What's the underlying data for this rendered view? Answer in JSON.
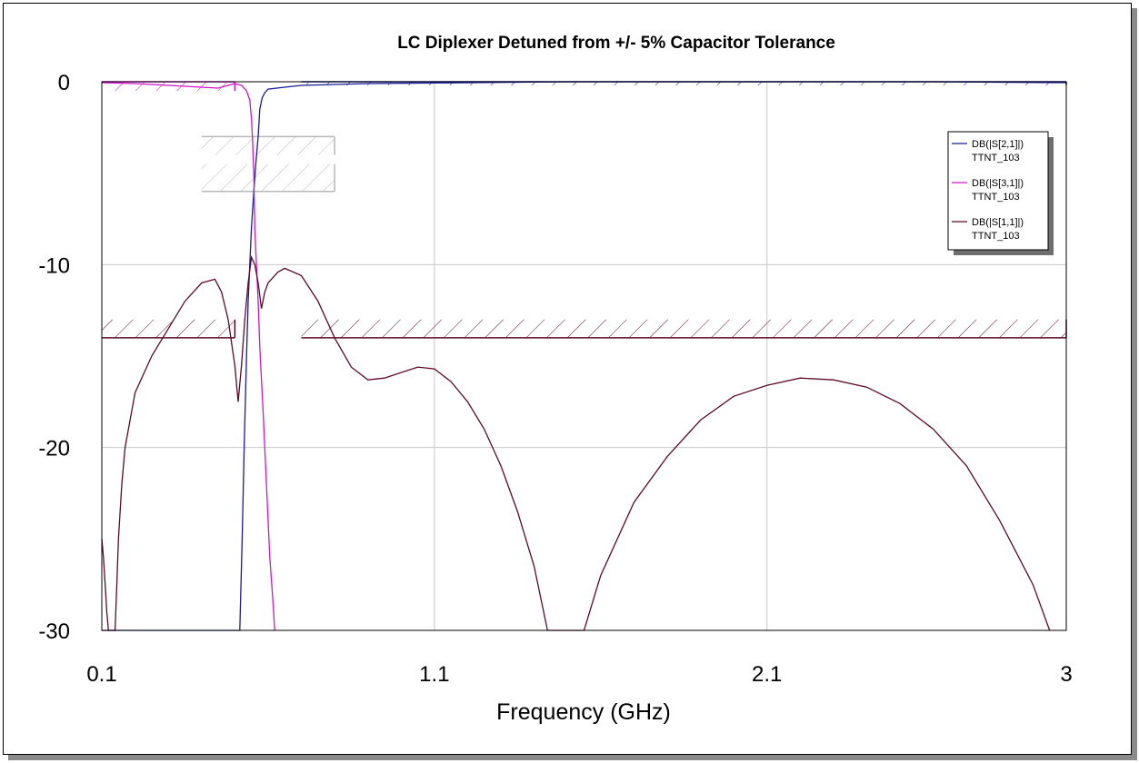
{
  "chart_data": {
    "type": "line",
    "title": "LC Diplexer Detuned from +/- 5% Capacitor Tolerance",
    "xlabel": "Frequency (GHz)",
    "ylabel": "",
    "xlim": [
      0.1,
      3
    ],
    "ylim": [
      -30,
      0
    ],
    "xticks": [
      0.1,
      1.1,
      2.1,
      3
    ],
    "xtick_labels": [
      "0.1",
      "1.1",
      "2.1",
      "3"
    ],
    "yticks": [
      0,
      -10,
      -20,
      -30
    ],
    "ytick_labels": [
      "0",
      "-10",
      "-20",
      "-30"
    ],
    "grid": true,
    "legend_position": "top-right",
    "series": [
      {
        "name": "DB(|S[2,1]|)",
        "sub": "TTNT_103",
        "color": "#1a1a9a",
        "points": [
          [
            0.1,
            -30
          ],
          [
            0.515,
            -30
          ],
          [
            0.522,
            -25
          ],
          [
            0.528,
            -20
          ],
          [
            0.535,
            -15
          ],
          [
            0.54,
            -12
          ],
          [
            0.545,
            -10
          ],
          [
            0.55,
            -8
          ],
          [
            0.557,
            -6
          ],
          [
            0.563,
            -4.5
          ],
          [
            0.57,
            -3
          ],
          [
            0.575,
            -1.5
          ],
          [
            0.582,
            -0.9
          ],
          [
            0.59,
            -0.6
          ],
          [
            0.6,
            -0.4
          ],
          [
            0.65,
            -0.3
          ],
          [
            0.7,
            -0.2
          ],
          [
            0.9,
            -0.1
          ],
          [
            1.5,
            0
          ],
          [
            2.6,
            0
          ],
          [
            3.0,
            -0.05
          ]
        ]
      },
      {
        "name": "DB(|S[3,1]|)",
        "sub": "TTNT_103",
        "color": "#d016c8",
        "points": [
          [
            0.1,
            -0.05
          ],
          [
            0.2,
            -0.1
          ],
          [
            0.3,
            -0.2
          ],
          [
            0.4,
            -0.3
          ],
          [
            0.45,
            -0.35
          ],
          [
            0.48,
            -0.2
          ],
          [
            0.5,
            -0.1
          ],
          [
            0.52,
            -0.2
          ],
          [
            0.535,
            -0.5
          ],
          [
            0.545,
            -1
          ],
          [
            0.55,
            -2
          ],
          [
            0.553,
            -3
          ],
          [
            0.557,
            -5
          ],
          [
            0.56,
            -8
          ],
          [
            0.565,
            -10
          ],
          [
            0.57,
            -12
          ],
          [
            0.575,
            -14.5
          ],
          [
            0.585,
            -18
          ],
          [
            0.595,
            -22
          ],
          [
            0.605,
            -26
          ],
          [
            0.615,
            -28.5
          ],
          [
            0.62,
            -30
          ]
        ]
      },
      {
        "name": "DB(|S[1,1]|)",
        "sub": "TTNT_103",
        "color": "#5c0a28",
        "points": [
          [
            0.1,
            -25
          ],
          [
            0.105,
            -26
          ],
          [
            0.11,
            -27.5
          ],
          [
            0.115,
            -29
          ],
          [
            0.12,
            -30
          ],
          [
            0.13,
            -30
          ],
          [
            0.14,
            -30
          ],
          [
            0.145,
            -27.5
          ],
          [
            0.15,
            -25
          ],
          [
            0.16,
            -22
          ],
          [
            0.17,
            -20
          ],
          [
            0.2,
            -17
          ],
          [
            0.25,
            -15
          ],
          [
            0.3,
            -13.5
          ],
          [
            0.35,
            -12
          ],
          [
            0.4,
            -11
          ],
          [
            0.44,
            -10.8
          ],
          [
            0.46,
            -11.5
          ],
          [
            0.48,
            -13
          ],
          [
            0.5,
            -15.5
          ],
          [
            0.51,
            -17.5
          ],
          [
            0.52,
            -15.5
          ],
          [
            0.53,
            -13
          ],
          [
            0.54,
            -11
          ],
          [
            0.55,
            -9.6
          ],
          [
            0.56,
            -10
          ],
          [
            0.57,
            -11
          ],
          [
            0.58,
            -12.4
          ],
          [
            0.59,
            -11.5
          ],
          [
            0.6,
            -11
          ],
          [
            0.63,
            -10.4
          ],
          [
            0.65,
            -10.2
          ],
          [
            0.7,
            -10.6
          ],
          [
            0.75,
            -12
          ],
          [
            0.8,
            -14
          ],
          [
            0.85,
            -15.6
          ],
          [
            0.9,
            -16.3
          ],
          [
            0.95,
            -16.2
          ],
          [
            1.0,
            -15.9
          ],
          [
            1.05,
            -15.6
          ],
          [
            1.1,
            -15.7
          ],
          [
            1.15,
            -16.4
          ],
          [
            1.2,
            -17.5
          ],
          [
            1.25,
            -19
          ],
          [
            1.3,
            -21
          ],
          [
            1.35,
            -23.5
          ],
          [
            1.4,
            -26.5
          ],
          [
            1.44,
            -30
          ],
          [
            1.55,
            -30
          ],
          [
            1.6,
            -27
          ],
          [
            1.7,
            -23
          ],
          [
            1.8,
            -20.5
          ],
          [
            1.9,
            -18.5
          ],
          [
            2.0,
            -17.2
          ],
          [
            2.1,
            -16.6
          ],
          [
            2.2,
            -16.2
          ],
          [
            2.3,
            -16.3
          ],
          [
            2.4,
            -16.7
          ],
          [
            2.5,
            -17.6
          ],
          [
            2.6,
            -19
          ],
          [
            2.7,
            -21
          ],
          [
            2.8,
            -24
          ],
          [
            2.9,
            -27.5
          ],
          [
            2.95,
            -30
          ]
        ]
      }
    ],
    "masks": [
      {
        "color": "#d016c8",
        "x": [
          0.1,
          0.5
        ],
        "y": 0,
        "level": -0.5
      },
      {
        "color": "#1a1a9a",
        "x": [
          0.7,
          3.0
        ],
        "y": 0,
        "level": -0.2
      },
      {
        "color": "#5c0a28",
        "x": [
          0.1,
          0.5
        ],
        "y": -14,
        "level": -13
      },
      {
        "color": "#5c0a28",
        "x": [
          0.7,
          3.0
        ],
        "y": -14,
        "level": -13
      },
      {
        "color": "#b8b8b8",
        "x": [
          0.4,
          0.8
        ],
        "y": -3,
        "level": -4
      },
      {
        "color": "#b8b8b8",
        "x": [
          0.4,
          0.8
        ],
        "y": -6,
        "level": -4.5
      }
    ]
  }
}
